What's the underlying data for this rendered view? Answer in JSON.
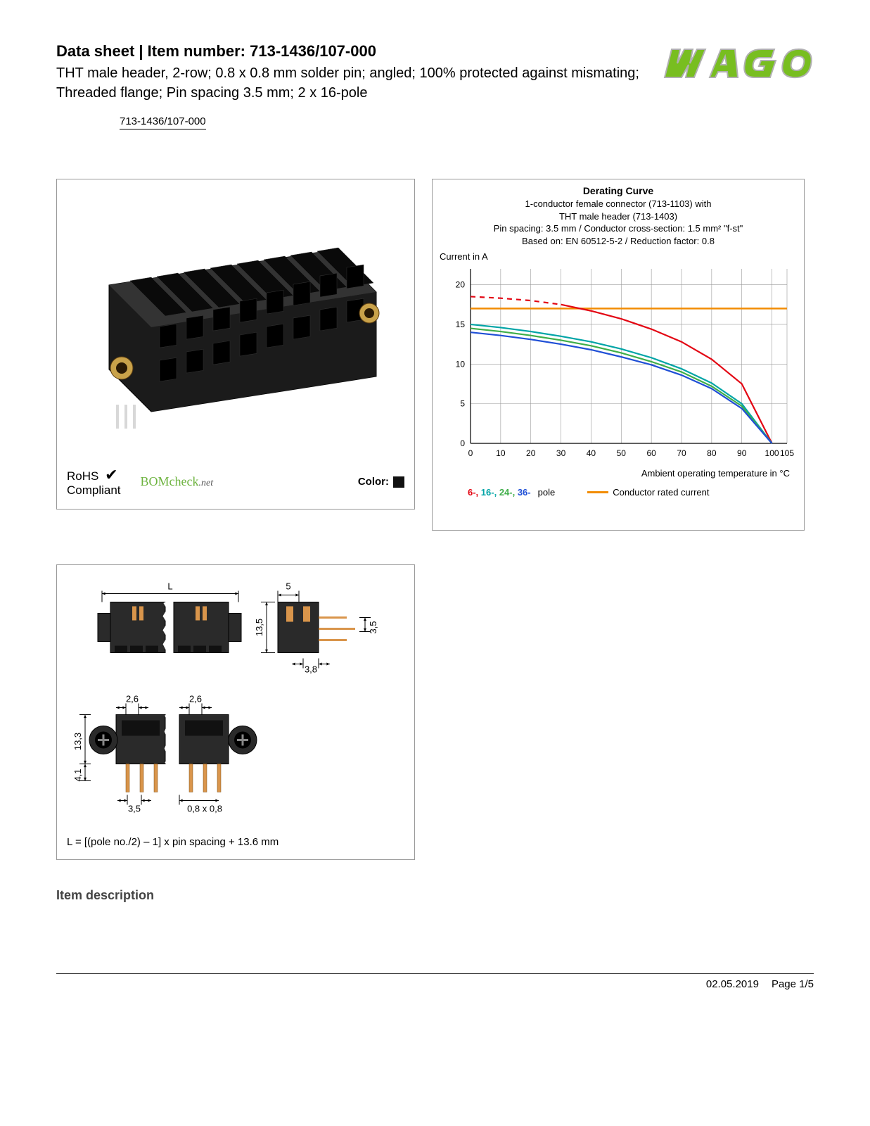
{
  "header": {
    "title_prefix": "Data sheet  |  Item number:",
    "item_number": "713-1436/107-000",
    "subtitle": "THT male header, 2-row; 0.8 x 0.8 mm solder pin; angled; 100% protected against mismating; Threaded flange; Pin spacing 3.5 mm; 2 x 16-pole",
    "chip": "713-1436/107-000",
    "logo_text": "WAGO",
    "logo_fill": "#78be20",
    "logo_stroke": "#b0b0b0"
  },
  "product_panel": {
    "rohs_line1": "RoHS",
    "rohs_line2": "Compliant",
    "bomcheck_main": "BOMcheck",
    "bomcheck_suffix": ".net",
    "color_label": "Color:",
    "color_swatch": "#111111",
    "connector_body": "#1b1b1b",
    "connector_highlight": "#333333",
    "brass_color": "#c9a24a",
    "pin_color": "#d8d8d8"
  },
  "chart": {
    "title": "Derating Curve",
    "sub1": "1-conductor female connector (713-1103) with",
    "sub2": "THT male header (713-1403)",
    "sub3": "Pin spacing: 3.5 mm / Conductor cross-section: 1.5 mm² \"f-st\"",
    "sub4": "Based on: EN 60512-5-2 / Reduction factor: 0.8",
    "y_label": "Current in A",
    "x_label": "Ambient operating temperature in °C",
    "x_ticks": [
      0,
      10,
      20,
      30,
      40,
      50,
      60,
      70,
      80,
      90,
      100,
      105
    ],
    "y_ticks": [
      0,
      5,
      10,
      15,
      20
    ],
    "xlim": [
      0,
      105
    ],
    "ylim": [
      0,
      22
    ],
    "grid_color": "#999999",
    "bg": "#ffffff",
    "series": [
      {
        "name": "6-pole",
        "color": "#e30613",
        "dash_to_x": 30,
        "pts": [
          [
            0,
            18.5
          ],
          [
            10,
            18.3
          ],
          [
            20,
            18.0
          ],
          [
            30,
            17.5
          ],
          [
            40,
            16.7
          ],
          [
            50,
            15.7
          ],
          [
            60,
            14.4
          ],
          [
            70,
            12.8
          ],
          [
            80,
            10.6
          ],
          [
            90,
            7.5
          ],
          [
            100,
            0
          ]
        ]
      },
      {
        "name": "16-pole",
        "color": "#00a4a6",
        "pts": [
          [
            0,
            15.0
          ],
          [
            10,
            14.6
          ],
          [
            20,
            14.1
          ],
          [
            30,
            13.5
          ],
          [
            40,
            12.8
          ],
          [
            50,
            11.9
          ],
          [
            60,
            10.8
          ],
          [
            70,
            9.4
          ],
          [
            80,
            7.6
          ],
          [
            90,
            5.0
          ],
          [
            100,
            0
          ]
        ]
      },
      {
        "name": "24-pole",
        "color": "#3fae49",
        "pts": [
          [
            0,
            14.5
          ],
          [
            10,
            14.1
          ],
          [
            20,
            13.6
          ],
          [
            30,
            13.0
          ],
          [
            40,
            12.3
          ],
          [
            50,
            11.4
          ],
          [
            60,
            10.3
          ],
          [
            70,
            9.0
          ],
          [
            80,
            7.2
          ],
          [
            90,
            4.7
          ],
          [
            100,
            0
          ]
        ]
      },
      {
        "name": "36-pole",
        "color": "#1f4fd6",
        "pts": [
          [
            0,
            14.0
          ],
          [
            10,
            13.6
          ],
          [
            20,
            13.1
          ],
          [
            30,
            12.5
          ],
          [
            40,
            11.8
          ],
          [
            50,
            10.9
          ],
          [
            60,
            9.9
          ],
          [
            70,
            8.6
          ],
          [
            80,
            6.9
          ],
          [
            90,
            4.4
          ],
          [
            100,
            0
          ]
        ]
      }
    ],
    "rated": {
      "name": "Conductor rated current",
      "color": "#f28c00",
      "y": 17
    },
    "legend_poles": [
      {
        "label": "6-,",
        "color": "#e30613"
      },
      {
        "label": "16-,",
        "color": "#00a4a6"
      },
      {
        "label": "24-,",
        "color": "#3fae49"
      },
      {
        "label": "36-",
        "color": "#1f4fd6"
      }
    ],
    "legend_pole_suffix": "pole",
    "legend_rated": "Conductor rated current"
  },
  "dims": {
    "labels": {
      "L": "L",
      "5": "5",
      "13_5": "13,5",
      "3_5v": "3,5",
      "3_8": "3,8",
      "2_6a": "2,6",
      "2_6b": "2,6",
      "13_3": "13,3",
      "4_1": "4,1",
      "3_5h": "3,5",
      "pinsize": "0,8 x 0,8"
    },
    "note": "L = [(pole no./2) – 1] x pin spacing + 13.6 mm",
    "body_fill": "#2a2a2a",
    "body_dark": "#111111",
    "copper": "#d9954b",
    "pin": "#dcdcdc",
    "line": "#000000"
  },
  "sections": {
    "item_desc": "Item description"
  },
  "footer": {
    "date": "02.05.2019",
    "page": "Page 1/5"
  }
}
